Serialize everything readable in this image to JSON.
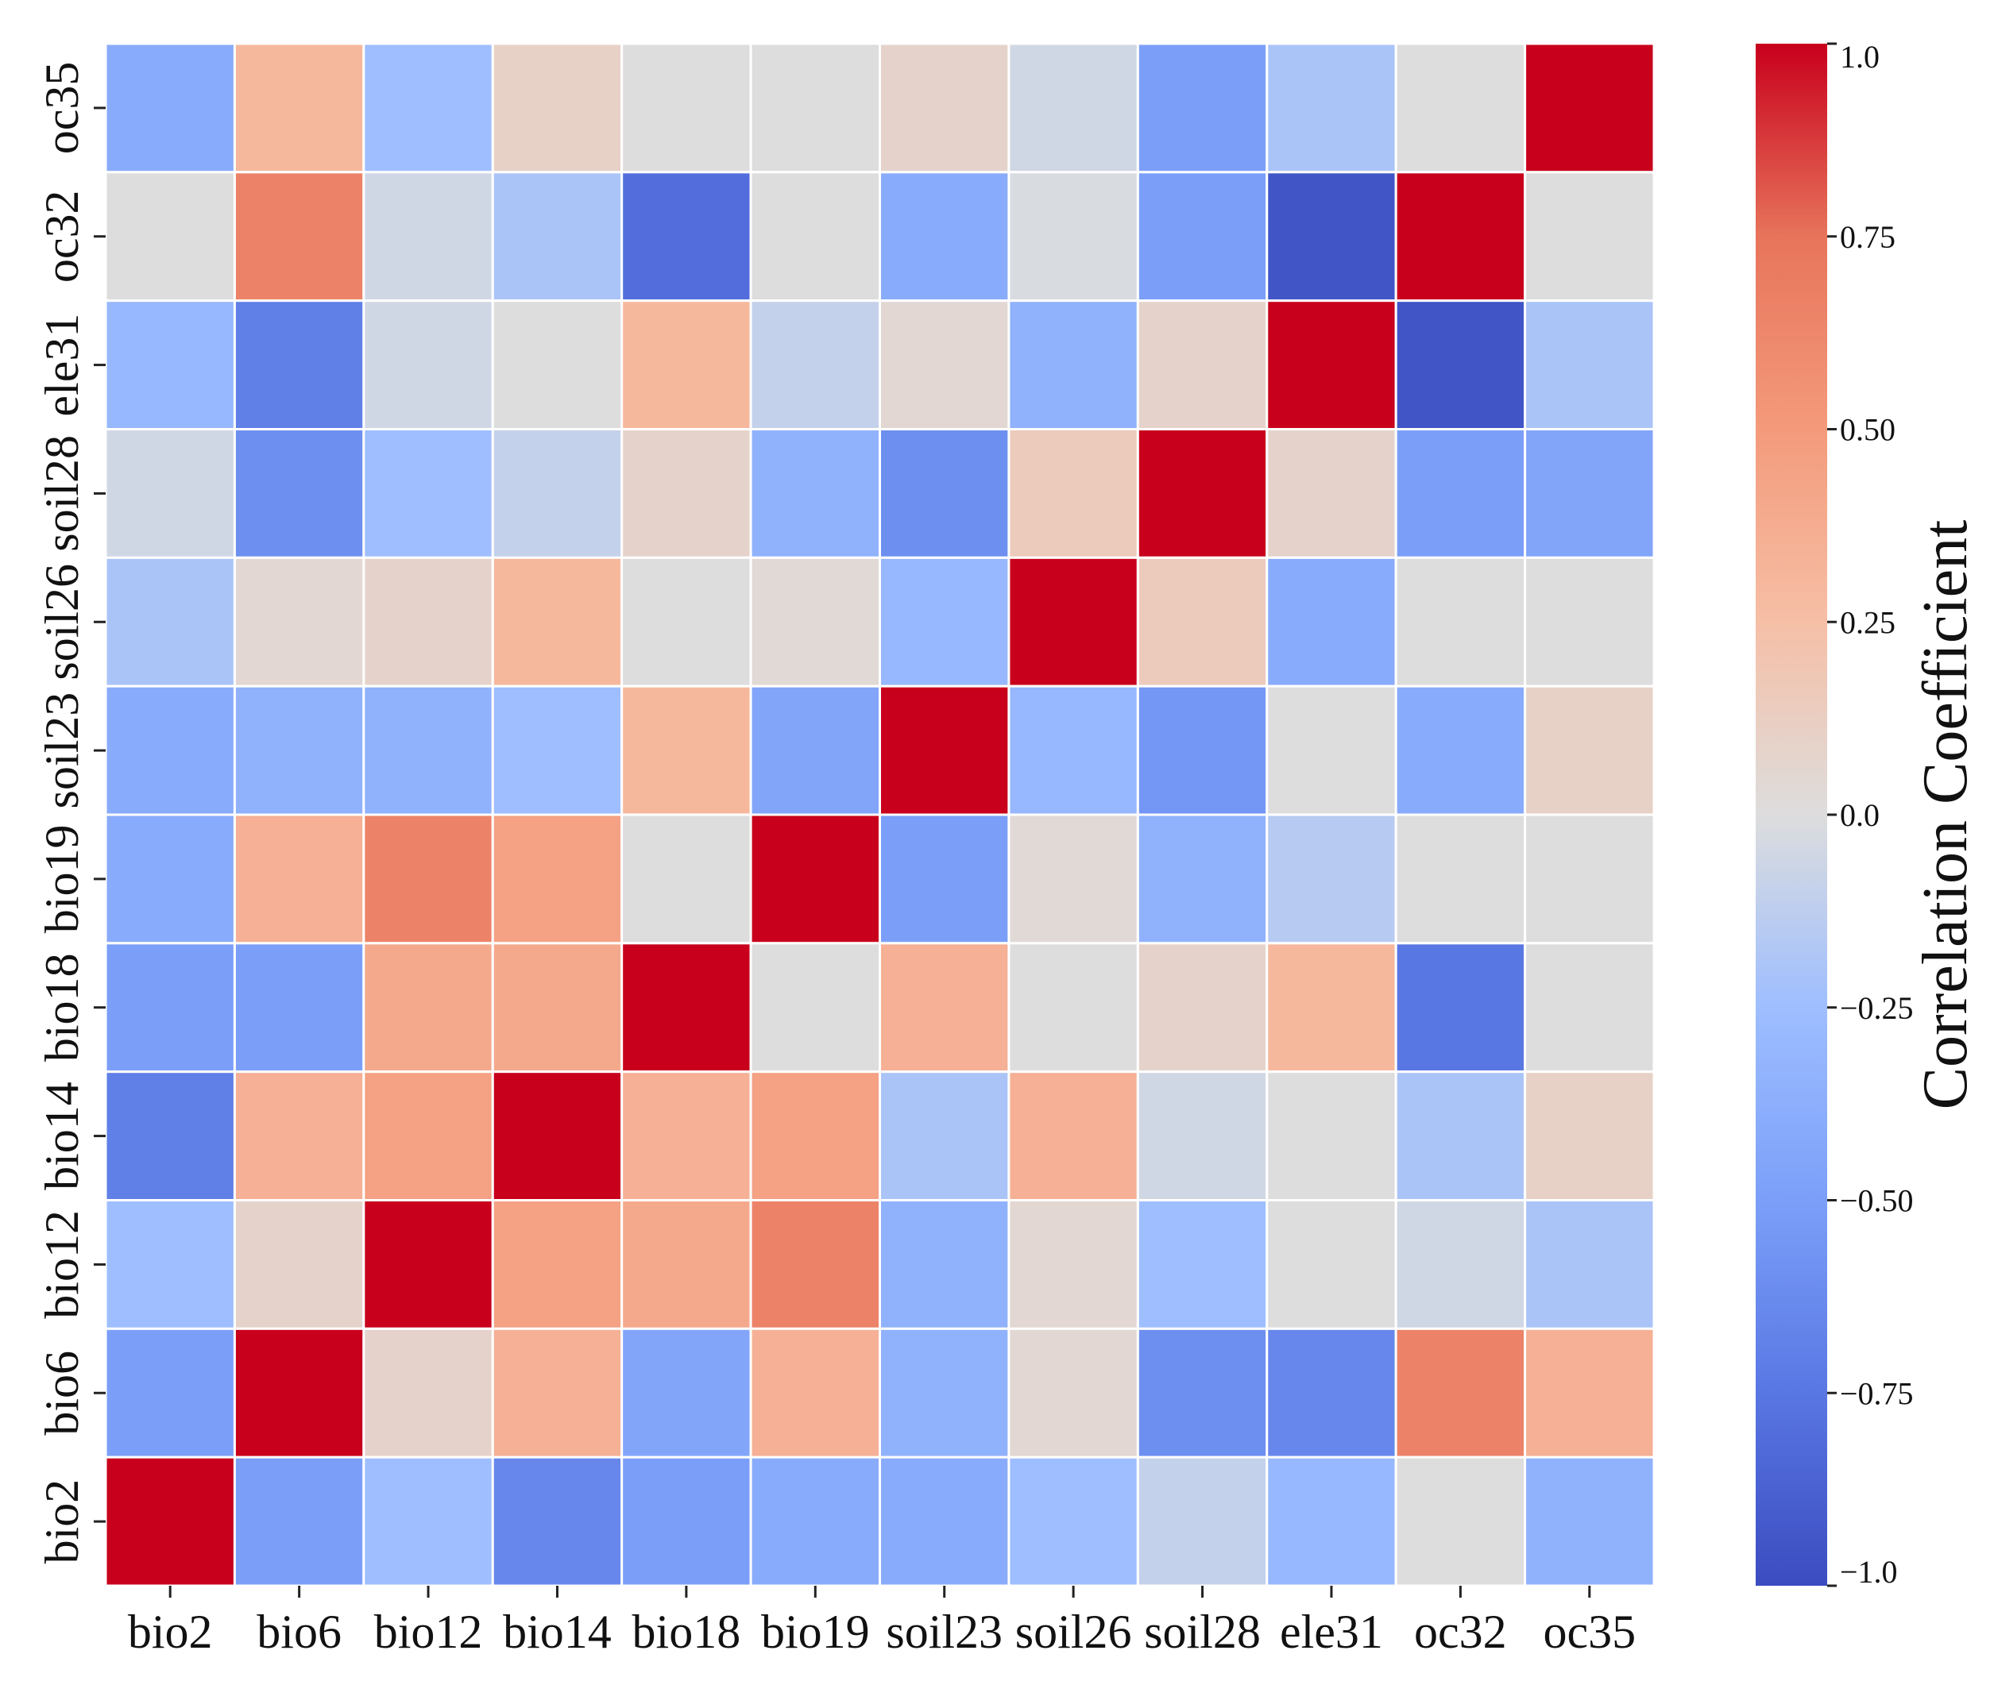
{
  "chart_data": {
    "type": "heatmap",
    "title": "",
    "xlabel": "",
    "ylabel": "",
    "x_categories": [
      "bio2",
      "bio6",
      "bio12",
      "bio14",
      "bio18",
      "bio19",
      "soil23",
      "soil26",
      "soil28",
      "ele31",
      "oc32",
      "oc35"
    ],
    "y_categories_top_to_bottom": [
      "oc35",
      "oc32",
      "ele31",
      "soil28",
      "soil26",
      "soil23",
      "bio19",
      "bio18",
      "bio14",
      "bio12",
      "bio6",
      "bio2"
    ],
    "value_range": [
      -1.0,
      1.0
    ],
    "colormap": "coolwarm",
    "values": [
      [
        -0.4,
        0.3,
        -0.25,
        0.1,
        0.0,
        0.0,
        0.08,
        -0.05,
        -0.5,
        -0.2,
        0.0,
        1.0
      ],
      [
        0.0,
        0.65,
        -0.05,
        -0.2,
        -0.8,
        0.0,
        -0.4,
        -0.02,
        -0.5,
        -0.95,
        1.0,
        0.0
      ],
      [
        -0.3,
        -0.7,
        -0.05,
        0.0,
        0.3,
        -0.1,
        0.05,
        -0.35,
        0.08,
        1.0,
        -0.95,
        -0.2
      ],
      [
        -0.05,
        -0.6,
        -0.25,
        -0.1,
        0.08,
        -0.35,
        -0.6,
        0.15,
        1.0,
        0.08,
        -0.5,
        -0.45
      ],
      [
        -0.2,
        0.05,
        0.08,
        0.3,
        0.0,
        0.03,
        -0.3,
        1.0,
        0.15,
        -0.4,
        0.0,
        0.0
      ],
      [
        -0.4,
        -0.35,
        -0.35,
        -0.25,
        0.3,
        -0.45,
        1.0,
        -0.3,
        -0.55,
        0.0,
        -0.4,
        0.1
      ],
      [
        -0.4,
        0.35,
        0.65,
        0.45,
        0.0,
        1.0,
        -0.5,
        0.03,
        -0.35,
        -0.15,
        0.0,
        0.0
      ],
      [
        -0.5,
        -0.5,
        0.4,
        0.4,
        1.0,
        0.0,
        0.35,
        0.0,
        0.08,
        0.3,
        -0.75,
        0.0
      ],
      [
        -0.7,
        0.35,
        0.45,
        1.0,
        0.35,
        0.45,
        -0.2,
        0.35,
        -0.05,
        0.0,
        -0.2,
        0.1
      ],
      [
        -0.25,
        0.08,
        1.0,
        0.45,
        0.4,
        0.65,
        -0.35,
        0.05,
        -0.25,
        0.0,
        -0.05,
        -0.2
      ],
      [
        -0.5,
        1.0,
        0.08,
        0.35,
        -0.45,
        0.35,
        -0.35,
        0.05,
        -0.6,
        -0.65,
        0.65,
        0.35
      ],
      [
        1.0,
        -0.5,
        -0.25,
        -0.65,
        -0.5,
        -0.4,
        -0.4,
        -0.25,
        -0.1,
        -0.3,
        0.0,
        -0.35
      ]
    ],
    "colorbar": {
      "title": "Correlation Coefficient",
      "ticks": [
        1.0,
        0.75,
        0.5,
        0.25,
        0.0,
        -0.25,
        -0.5,
        -0.75,
        -1.0
      ],
      "tick_labels": [
        "1.0",
        "0.75",
        "0.50",
        "0.25",
        "0.0",
        "−0.25",
        "−0.50",
        "−0.75",
        "−1.0"
      ]
    }
  }
}
